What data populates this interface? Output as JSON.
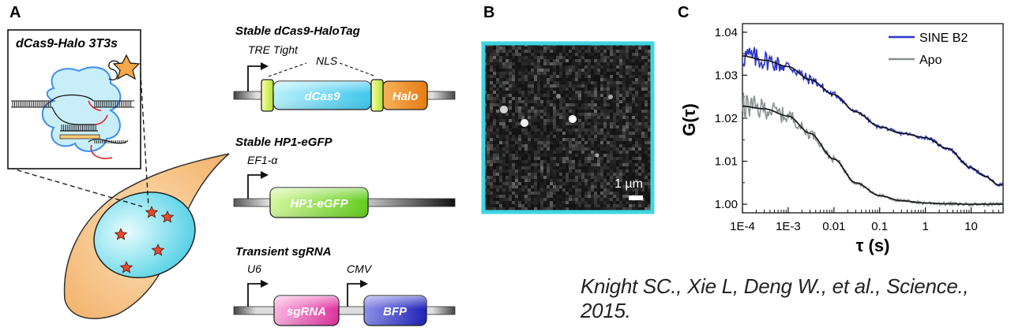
{
  "panel_a": {
    "label": "A",
    "inset_title": "dCas9-Halo 3T3s",
    "constructs": [
      {
        "title": "Stable dCas9-HaloTag",
        "promoter": "TRE Tight",
        "nls": "NLS",
        "gene": "dCas9",
        "tag": "Halo"
      },
      {
        "title": "Stable HP1-eGFP",
        "promoter": "EF1-α",
        "gene": "HP1-eGFP"
      },
      {
        "title": "Transient sgRNA",
        "promoter": "U6",
        "promoter2": "CMV",
        "gene": "sgRNA",
        "gene2": "BFP"
      }
    ]
  },
  "panel_b": {
    "label": "B",
    "scale_bar": "1 µm"
  },
  "panel_c": {
    "label": "C",
    "ylabel": "G(τ)",
    "xlabel": "τ (s)",
    "legend": [
      "SINE B2",
      "Apo"
    ]
  },
  "chart_data": {
    "type": "line",
    "xscale": "log",
    "xlim": [
      0.0001,
      50
    ],
    "ylim": [
      0.998,
      1.042
    ],
    "xticks": [
      "1E-4",
      "1E-3",
      "0.01",
      "0.1",
      "1",
      "10"
    ],
    "yticks": [
      "1.00",
      "1.01",
      "1.02",
      "1.03",
      "1.04"
    ],
    "grid": false,
    "legend_position": "top-right",
    "series": [
      {
        "name": "SINE B2",
        "color": "#2a33c8",
        "x": [
          0.0001,
          0.0003,
          0.001,
          0.003,
          0.01,
          0.03,
          0.1,
          0.3,
          1,
          3,
          10,
          20,
          40
        ],
        "y": [
          1.0345,
          1.0335,
          1.032,
          1.029,
          1.0255,
          1.0215,
          1.018,
          1.0165,
          1.0155,
          1.013,
          1.0085,
          1.0065,
          1.0045
        ]
      },
      {
        "name": "Apo",
        "color": "#8a9090",
        "x": [
          0.0001,
          0.0003,
          0.001,
          0.003,
          0.01,
          0.03,
          0.1,
          0.3,
          1,
          3,
          10,
          40
        ],
        "y": [
          1.0228,
          1.0222,
          1.0205,
          1.0165,
          1.0105,
          1.005,
          1.002,
          1.0008,
          1.0003,
          1.0001,
          1.0,
          1.0
        ]
      }
    ]
  },
  "citation": "Knight SC., Xie L, Deng W., et al., Science., 2015.",
  "colors": {
    "cell": "#f8c88c",
    "nucleus": "#7fe3ee",
    "dcas9": "#7fd8f0",
    "halo": "#f0902a",
    "hp1": "#8ee04a",
    "sgrna": "#ee60b8",
    "bfp": "#2a2fc8",
    "image_border": "#3fd4e2"
  }
}
